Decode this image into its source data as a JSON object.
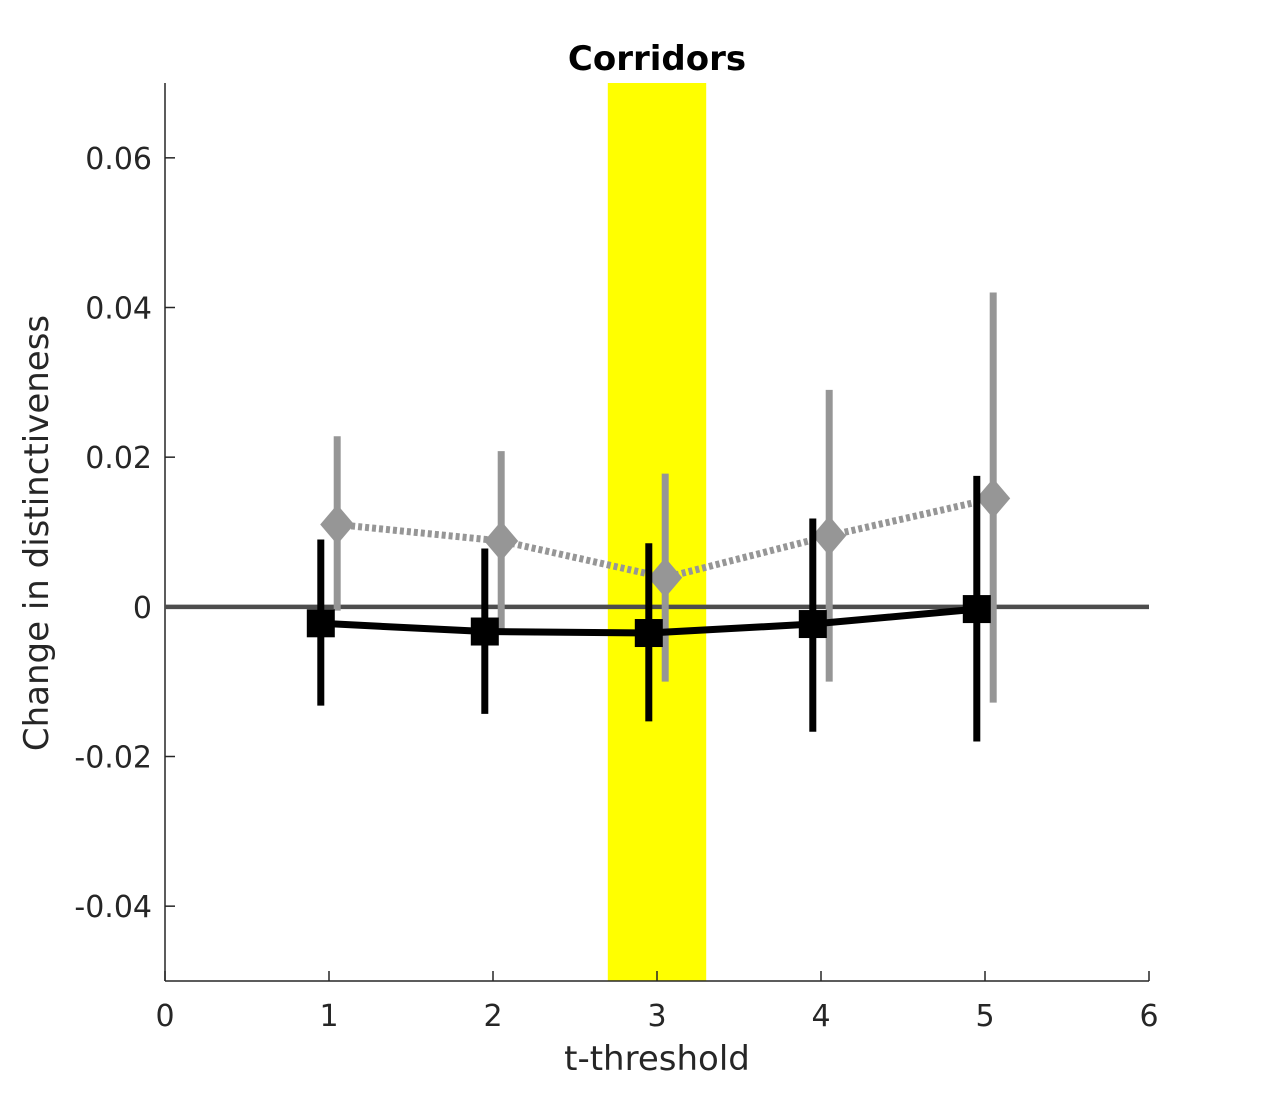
{
  "chart_data": {
    "type": "line",
    "title": "Corridors",
    "xlabel": "t-threshold",
    "ylabel": "Change in distinctiveness",
    "xlim": [
      0,
      6
    ],
    "ylim": [
      -0.05,
      0.07
    ],
    "xticks": [
      0,
      1,
      2,
      3,
      4,
      5,
      6
    ],
    "xtick_labels": [
      "0",
      "1",
      "2",
      "3",
      "4",
      "5",
      "6"
    ],
    "yticks": [
      -0.04,
      -0.02,
      0,
      0.02,
      0.04,
      0.06
    ],
    "ytick_labels": [
      "-0.04",
      "-0.02",
      "0",
      "0.02",
      "0.04",
      "0.06"
    ],
    "grid": false,
    "highlight_band": {
      "x0": 2.7,
      "x1": 3.3,
      "color": "#ffff00"
    },
    "reference_line": {
      "y": 0,
      "color": "#4d4d4d"
    },
    "series": [
      {
        "x": [
          0.95,
          1.95,
          2.95,
          3.95,
          4.95
        ],
        "values": [
          -0.0022,
          -0.0033,
          -0.0035,
          -0.0023,
          -0.0003
        ],
        "err_low": [
          -0.0132,
          -0.0143,
          -0.0153,
          -0.0167,
          -0.018
        ],
        "err_high": [
          0.009,
          0.0078,
          0.0085,
          0.0118,
          0.0175
        ],
        "color": "#000000",
        "line_style": "solid",
        "marker": "square"
      },
      {
        "x": [
          1.05,
          2.05,
          3.05,
          4.05,
          5.05
        ],
        "values": [
          0.011,
          0.0088,
          0.0039,
          0.0095,
          0.0145
        ],
        "err_low": [
          -0.0005,
          -0.003,
          -0.01,
          -0.01,
          -0.0128
        ],
        "err_high": [
          0.0228,
          0.0208,
          0.0178,
          0.029,
          0.042
        ],
        "color": "#969696",
        "line_style": "dotted",
        "marker": "diamond"
      }
    ]
  }
}
